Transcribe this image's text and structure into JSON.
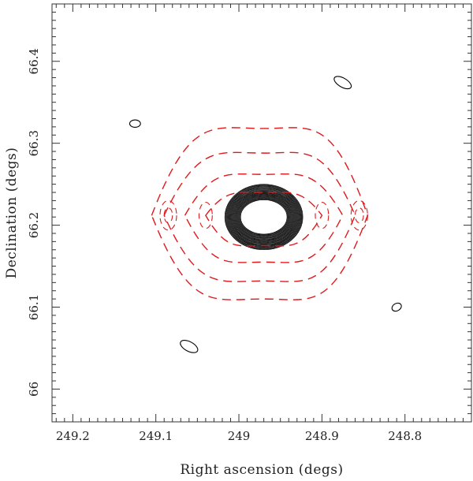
{
  "chart_data": {
    "type": "contour",
    "xlabel": "Right ascension (degs)",
    "ylabel": "Declination (degs)",
    "x_ticks": [
      249.2,
      249.1,
      249,
      248.9,
      248.8
    ],
    "x_tick_labels": [
      "249.2",
      "249.1",
      "249",
      "248.9",
      "248.8"
    ],
    "y_ticks": [
      66,
      66.1,
      66.2,
      66.3,
      66.4
    ],
    "y_tick_labels": [
      "66",
      "66.1",
      "66.2",
      "66.3",
      "66.4"
    ],
    "xlim": [
      249.225,
      248.72
    ],
    "ylim": [
      65.96,
      66.47
    ],
    "grid": false,
    "series": [
      {
        "style": "solid",
        "color": "#000000",
        "contours": [
          {
            "center": [
              248.97,
              66.21
            ],
            "ra_radius": 0.028,
            "dec_radius": 0.021,
            "rings": 22,
            "radius_step": 0.0009
          },
          {
            "center": [
              249.125,
              66.324
            ],
            "ra_radius": 0.0065,
            "dec_radius": 0.0045,
            "rotation": 0
          },
          {
            "center": [
              248.875,
              66.374
            ],
            "ra_radius": 0.0115,
            "dec_radius": 0.0055,
            "rotation": 30
          },
          {
            "center": [
              249.06,
              66.052
            ],
            "ra_radius": 0.0115,
            "dec_radius": 0.0058,
            "rotation": 28
          },
          {
            "center": [
              248.81,
              66.1
            ],
            "ra_radius": 0.006,
            "dec_radius": 0.0045,
            "rotation": -30
          }
        ]
      },
      {
        "style": "dashed",
        "color": "#e0191c",
        "contours": [
          {
            "type": "lens",
            "center": [
              248.97,
              66.212
            ],
            "left_ra": 249.105,
            "right_ra": 248.845,
            "top_dec": 66.318,
            "bottom_dec": 66.11
          },
          {
            "type": "lens",
            "center": [
              248.97,
              66.212
            ],
            "left_ra": 249.09,
            "right_ra": 248.86,
            "top_dec": 66.288,
            "bottom_dec": 66.132
          },
          {
            "type": "lens",
            "center": [
              248.97,
              66.212
            ],
            "left_ra": 249.065,
            "right_ra": 248.875,
            "top_dec": 66.262,
            "bottom_dec": 66.155
          },
          {
            "type": "lens",
            "center": [
              248.97,
              66.212
            ],
            "left_ra": 249.04,
            "right_ra": 248.9,
            "top_dec": 66.24,
            "bottom_dec": 66.175
          },
          {
            "type": "ellipse",
            "center": [
              249.085,
              66.212
            ],
            "ra_radius": 0.01,
            "dec_radius": 0.018
          },
          {
            "type": "ellipse",
            "center": [
              249.085,
              66.212
            ],
            "ra_radius": 0.005,
            "dec_radius": 0.009
          },
          {
            "type": "ellipse",
            "center": [
              248.855,
              66.212
            ],
            "ra_radius": 0.01,
            "dec_radius": 0.018
          },
          {
            "type": "ellipse",
            "center": [
              248.855,
              66.212
            ],
            "ra_radius": 0.005,
            "dec_radius": 0.009
          },
          {
            "type": "ellipse",
            "center": [
              249.04,
              66.212
            ],
            "ra_radius": 0.008,
            "dec_radius": 0.016
          },
          {
            "type": "ellipse",
            "center": [
              248.9,
              66.212
            ],
            "ra_radius": 0.008,
            "dec_radius": 0.016
          }
        ]
      }
    ]
  }
}
